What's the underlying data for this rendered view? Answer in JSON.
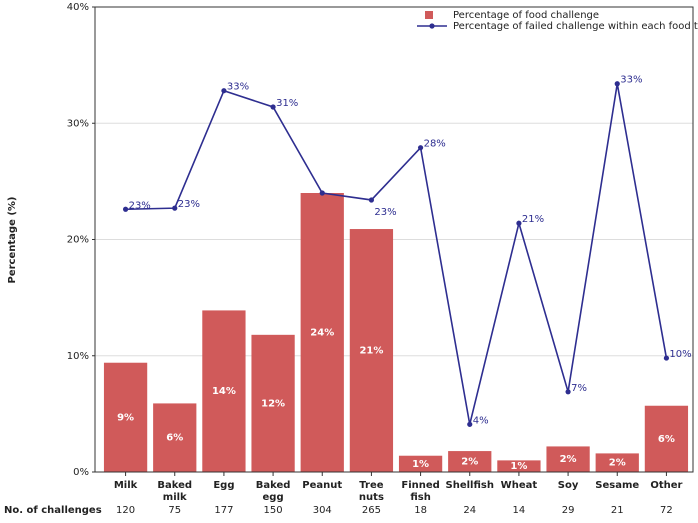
{
  "chart_data": {
    "type": "bar_line",
    "y_label": "Percentage (%)",
    "categories": [
      "Milk",
      "Baked milk",
      "Egg",
      "Baked egg",
      "Peanut",
      "Tree nuts",
      "Finned fish",
      "Shellfish",
      "Wheat",
      "Soy",
      "Sesame",
      "Other"
    ],
    "series": [
      {
        "name": "Percentage of food challenge",
        "type": "bar",
        "color": "#d05a5a",
        "values": [
          9.4,
          5.9,
          13.9,
          11.8,
          24.0,
          20.9,
          1.4,
          1.8,
          1.0,
          2.2,
          1.6,
          5.7
        ],
        "value_labels": [
          "9%",
          "6%",
          "14%",
          "12%",
          "24%",
          "21%",
          "1%",
          "2%",
          "1%",
          "2%",
          "2%",
          "6%"
        ]
      },
      {
        "name": "Percentage of failed challenge within each food type",
        "type": "line",
        "color": "#2e2e90",
        "values": [
          22.6,
          22.7,
          32.8,
          31.4,
          24.0,
          23.4,
          27.9,
          4.1,
          21.4,
          6.9,
          33.4,
          9.8
        ],
        "value_labels": [
          "23%",
          "23%",
          "33%",
          "31%",
          null,
          "23%",
          "28%",
          "4%",
          "21%",
          "7%",
          "33%",
          "10%"
        ]
      }
    ],
    "ylim": [
      0,
      40
    ],
    "yticks": [
      {
        "value": 0,
        "label": "0%"
      },
      {
        "value": 10,
        "label": "10%"
      },
      {
        "value": 20,
        "label": "20%"
      },
      {
        "value": 30,
        "label": "30%"
      },
      {
        "value": 40,
        "label": "40%"
      }
    ],
    "grid": true,
    "legend": "top-right",
    "challenges_label": "No. of challenges",
    "challenges": [
      120,
      75,
      177,
      150,
      304,
      265,
      18,
      24,
      14,
      29,
      21,
      72
    ]
  }
}
